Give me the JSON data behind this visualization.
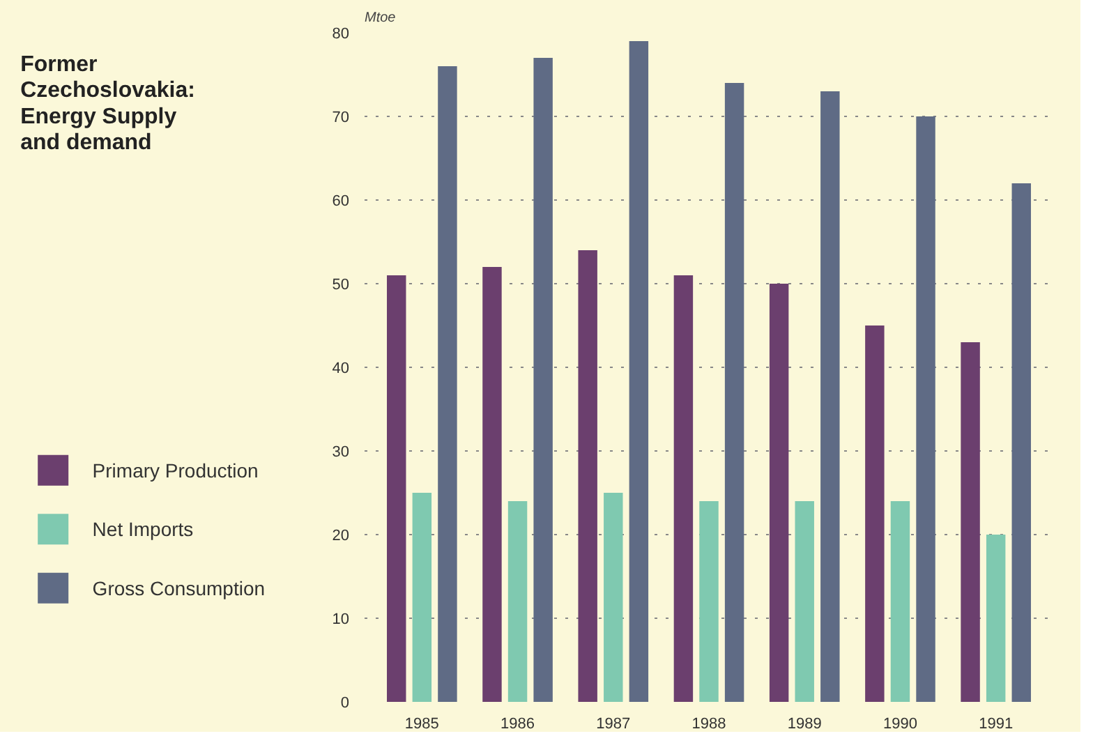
{
  "chart_data": {
    "type": "bar",
    "title": "Former Czechoslovakia: Energy Supply and demand",
    "ylabel": "Mtoe",
    "categories": [
      "1985",
      "1986",
      "1987",
      "1988",
      "1989",
      "1990",
      "1991"
    ],
    "series": [
      {
        "name": "Primary Production",
        "color": "#6b3f6e",
        "values": [
          51,
          52,
          54,
          51,
          50,
          45,
          43
        ]
      },
      {
        "name": "Net Imports",
        "color": "#7fc9b0",
        "values": [
          25,
          24,
          25,
          24,
          24,
          24,
          20
        ]
      },
      {
        "name": "Gross Consumption",
        "color": "#5f6b85",
        "values": [
          76,
          77,
          79,
          74,
          73,
          70,
          62
        ]
      }
    ],
    "ylim": [
      0,
      80
    ],
    "yticks": [
      0,
      10,
      20,
      30,
      40,
      50,
      60,
      70,
      80
    ],
    "grid": "y",
    "legend": "left"
  }
}
